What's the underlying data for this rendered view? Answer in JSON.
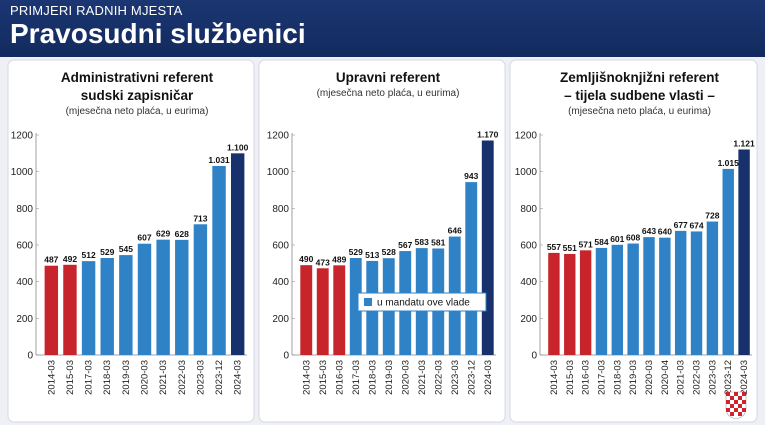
{
  "header": {
    "kicker": "PRIMJERI RADNIH MJESTA",
    "title": "Pravosudni službenici"
  },
  "colors": {
    "before": "#c8242b",
    "during": "#2f82c6",
    "latest": "#18306b",
    "header_bg": "#1b3672"
  },
  "chart_data": [
    {
      "type": "bar",
      "title": [
        "Administrativni referent",
        "sudski zapisničar"
      ],
      "subtitle": "(mjesečna neto plaća, u eurima)",
      "categories": [
        "2014-03",
        "2015-03",
        "2017-03",
        "2018-03",
        "2019-03",
        "2020-03",
        "2021-03",
        "2022-03",
        "2023-03",
        "2023-12",
        "2024-03"
      ],
      "values": [
        487,
        492,
        512,
        529,
        545,
        607,
        629,
        628,
        713,
        1031,
        1100
      ],
      "labels": [
        "487",
        "492",
        "512",
        "529",
        "545",
        "607",
        "629",
        "628",
        "713",
        "1.031",
        "1.100"
      ],
      "groups": [
        "before",
        "before",
        "during",
        "during",
        "during",
        "during",
        "during",
        "during",
        "during",
        "during",
        "latest"
      ],
      "yticks": [
        0,
        200,
        400,
        600,
        800,
        1000,
        1200
      ],
      "ylim": [
        0,
        1200
      ],
      "grid": false
    },
    {
      "type": "bar",
      "title": [
        "Upravni referent"
      ],
      "subtitle": "(mjesečna neto plaća, u eurima)",
      "categories": [
        "2014-03",
        "2015-03",
        "2016-03",
        "2017-03",
        "2018-03",
        "2019-03",
        "2020-03",
        "2021-03",
        "2022-03",
        "2023-03",
        "2023-12",
        "2024-03"
      ],
      "values": [
        490,
        473,
        489,
        529,
        513,
        528,
        567,
        583,
        581,
        646,
        943,
        1170
      ],
      "labels": [
        "490",
        "473",
        "489",
        "529",
        "513",
        "528",
        "567",
        "583",
        "581",
        "646",
        "943",
        "1.170"
      ],
      "groups": [
        "before",
        "before",
        "before",
        "during",
        "during",
        "during",
        "during",
        "during",
        "during",
        "during",
        "during",
        "latest"
      ],
      "yticks": [
        0,
        200,
        400,
        600,
        800,
        1000,
        1200
      ],
      "ylim": [
        0,
        1200
      ],
      "grid": false,
      "legend": {
        "label": "u mandatu ove vlade",
        "placement": "bottom-right"
      }
    },
    {
      "type": "bar",
      "title": [
        "Zemljišnoknjižni referent",
        "– tijela sudbene vlasti –"
      ],
      "subtitle": "(mjesečna neto plaća, u eurima)",
      "categories": [
        "2014-03",
        "2015-03",
        "2016-03",
        "2017-03",
        "2018-03",
        "2019-03",
        "2020-03",
        "2020-04",
        "2021-03",
        "2022-03",
        "2023-03",
        "2023-12",
        "2024-03"
      ],
      "values": [
        557,
        551,
        571,
        584,
        601,
        608,
        643,
        640,
        677,
        674,
        728,
        1015,
        1121
      ],
      "labels": [
        "557",
        "551",
        "571",
        "584",
        "601",
        "608",
        "643",
        "640",
        "677",
        "674",
        "728",
        "1.015",
        "1.121"
      ],
      "groups": [
        "before",
        "before",
        "before",
        "during",
        "during",
        "during",
        "during",
        "during",
        "during",
        "during",
        "during",
        "during",
        "latest"
      ],
      "yticks": [
        0,
        200,
        400,
        600,
        800,
        1000,
        1200
      ],
      "ylim": [
        0,
        1200
      ],
      "grid": false
    }
  ]
}
